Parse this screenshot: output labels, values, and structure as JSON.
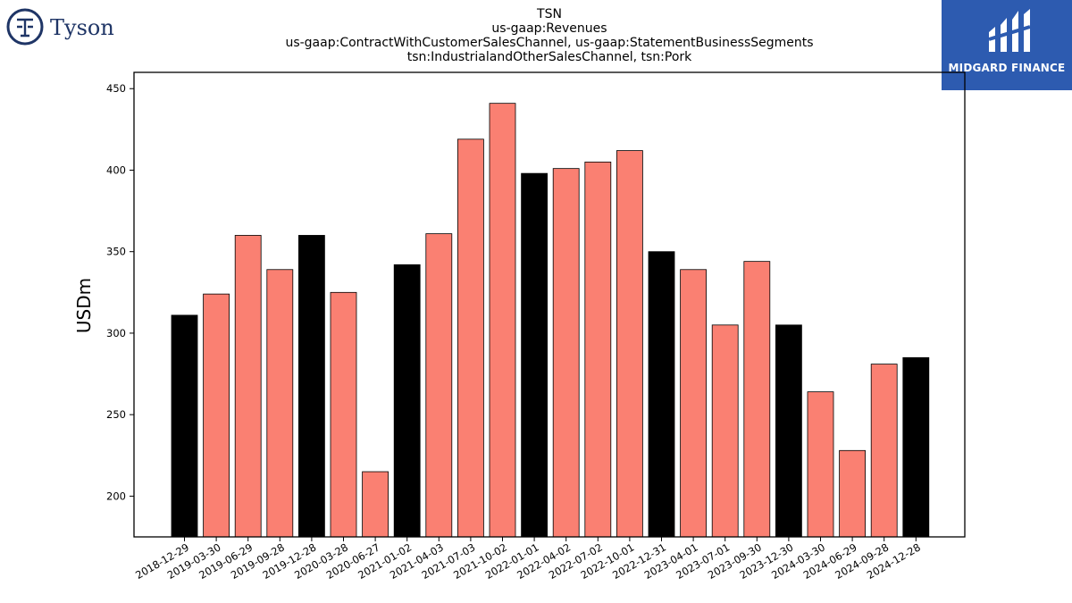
{
  "logos": {
    "left_brand": "Tyson",
    "right_brand": "MIDGARD FINANCE"
  },
  "chart_data": {
    "type": "bar",
    "title_lines": [
      "TSN",
      "us-gaap:Revenues",
      "us-gaap:ContractWithCustomerSalesChannel, us-gaap:StatementBusinessSegments",
      "tsn:IndustrialandOtherSalesChannel, tsn:Pork"
    ],
    "xlabel": "",
    "ylabel": "USDm",
    "ylim": [
      175,
      460
    ],
    "yticks": [
      200,
      250,
      300,
      350,
      400,
      450
    ],
    "grid": false,
    "categories": [
      "2018-12-29",
      "2019-03-30",
      "2019-06-29",
      "2019-09-28",
      "2019-12-28",
      "2020-03-28",
      "2020-06-27",
      "2021-01-02",
      "2021-04-03",
      "2021-07-03",
      "2021-10-02",
      "2022-01-01",
      "2022-04-02",
      "2022-07-02",
      "2022-10-01",
      "2022-12-31",
      "2023-04-01",
      "2023-07-01",
      "2023-09-30",
      "2023-12-30",
      "2024-03-30",
      "2024-06-29",
      "2024-09-28",
      "2024-12-28"
    ],
    "values": [
      311,
      324,
      360,
      339,
      360,
      325,
      215,
      342,
      361,
      419,
      441,
      398,
      401,
      405,
      412,
      350,
      339,
      305,
      344,
      305,
      264,
      228,
      281,
      285
    ],
    "bar_colors": [
      "#000000",
      "#fa8072",
      "#fa8072",
      "#fa8072",
      "#000000",
      "#fa8072",
      "#fa8072",
      "#000000",
      "#fa8072",
      "#fa8072",
      "#fa8072",
      "#000000",
      "#fa8072",
      "#fa8072",
      "#fa8072",
      "#000000",
      "#fa8072",
      "#fa8072",
      "#fa8072",
      "#000000",
      "#fa8072",
      "#fa8072",
      "#fa8072",
      "#000000"
    ]
  }
}
